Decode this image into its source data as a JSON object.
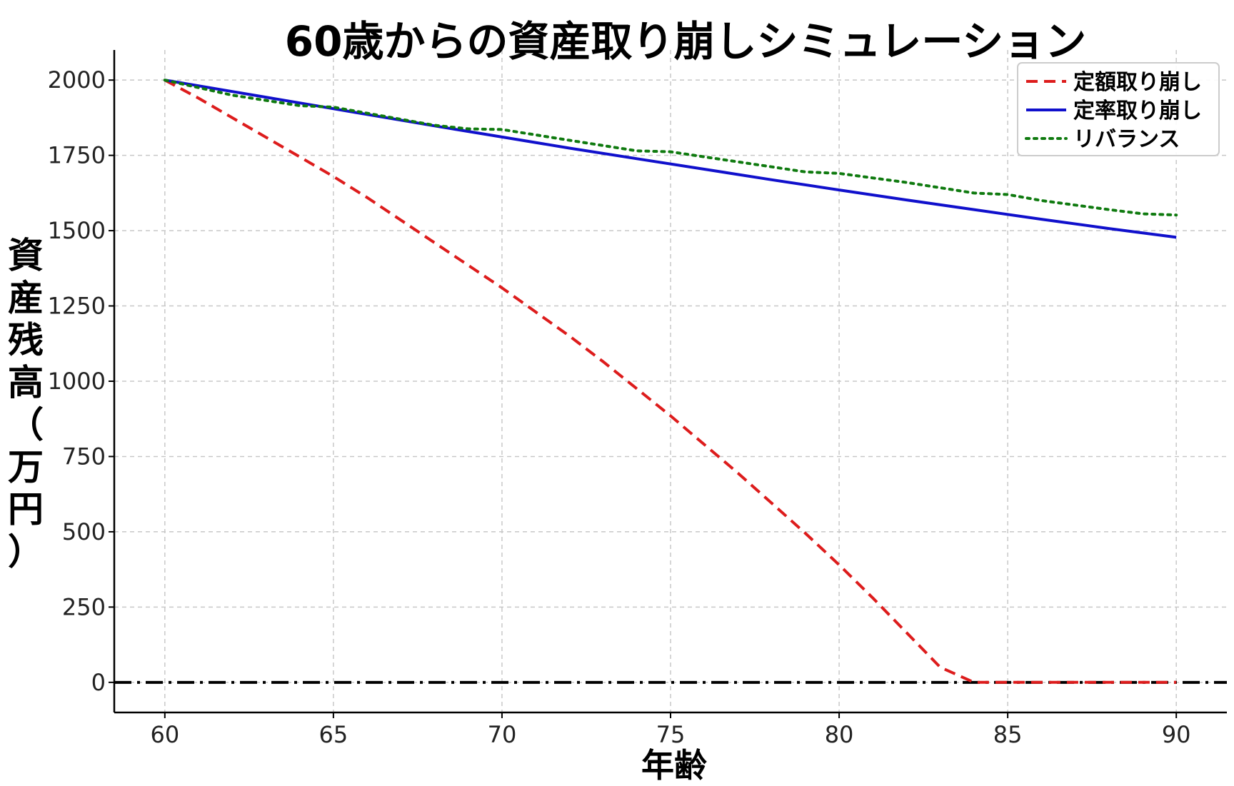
{
  "chart_data": {
    "type": "line",
    "title": "60歳からの資産取り崩しシミュレーション",
    "xlabel": "年齢",
    "ylabel": "資産残高（万円）",
    "xlim": [
      58.5,
      91.5
    ],
    "ylim": [
      -100,
      2100
    ],
    "xticks": [
      60,
      65,
      70,
      75,
      80,
      85,
      90
    ],
    "yticks": [
      0,
      250,
      500,
      750,
      1000,
      1250,
      1500,
      1750,
      2000
    ],
    "grid": true,
    "legend_position": "top-right",
    "reference_line": {
      "y": 0,
      "style": "dashdot",
      "color": "#000000"
    },
    "series": [
      {
        "name": "定額取り崩し",
        "color": "#dd1c1c",
        "style": "dashed",
        "x": [
          60,
          61,
          62,
          63,
          64,
          65,
          66,
          67,
          68,
          69,
          70,
          71,
          72,
          73,
          74,
          75,
          76,
          77,
          78,
          79,
          80,
          81,
          82,
          83,
          84,
          85,
          86,
          87,
          88,
          89,
          90
        ],
        "values": [
          2000,
          1940,
          1875,
          1810,
          1745,
          1680,
          1610,
          1535,
          1460,
          1385,
          1310,
          1230,
          1150,
          1065,
          975,
          885,
          790,
          695,
          595,
          495,
          390,
          280,
          165,
          50,
          0,
          0,
          0,
          0,
          0,
          0,
          0
        ]
      },
      {
        "name": "定率取り崩し",
        "color": "#1010cc",
        "style": "solid",
        "x": [
          60,
          62,
          64,
          66,
          68,
          70,
          72,
          74,
          76,
          78,
          80,
          82,
          84,
          86,
          88,
          90
        ],
        "values": [
          2000,
          1962,
          1924,
          1886,
          1848,
          1811,
          1774,
          1739,
          1704,
          1669,
          1635,
          1602,
          1570,
          1538,
          1507,
          1478
        ]
      },
      {
        "name": "リバランス",
        "color": "#0f7a0f",
        "style": "dotted",
        "x": [
          60,
          62,
          64,
          65,
          66,
          68,
          69,
          70,
          72,
          74,
          75,
          76,
          78,
          79,
          80,
          82,
          84,
          85,
          86,
          88,
          89,
          90
        ],
        "values": [
          2000,
          1950,
          1915,
          1910,
          1890,
          1850,
          1838,
          1836,
          1800,
          1765,
          1762,
          1745,
          1712,
          1695,
          1690,
          1660,
          1625,
          1620,
          1600,
          1570,
          1556,
          1552
        ]
      }
    ]
  }
}
